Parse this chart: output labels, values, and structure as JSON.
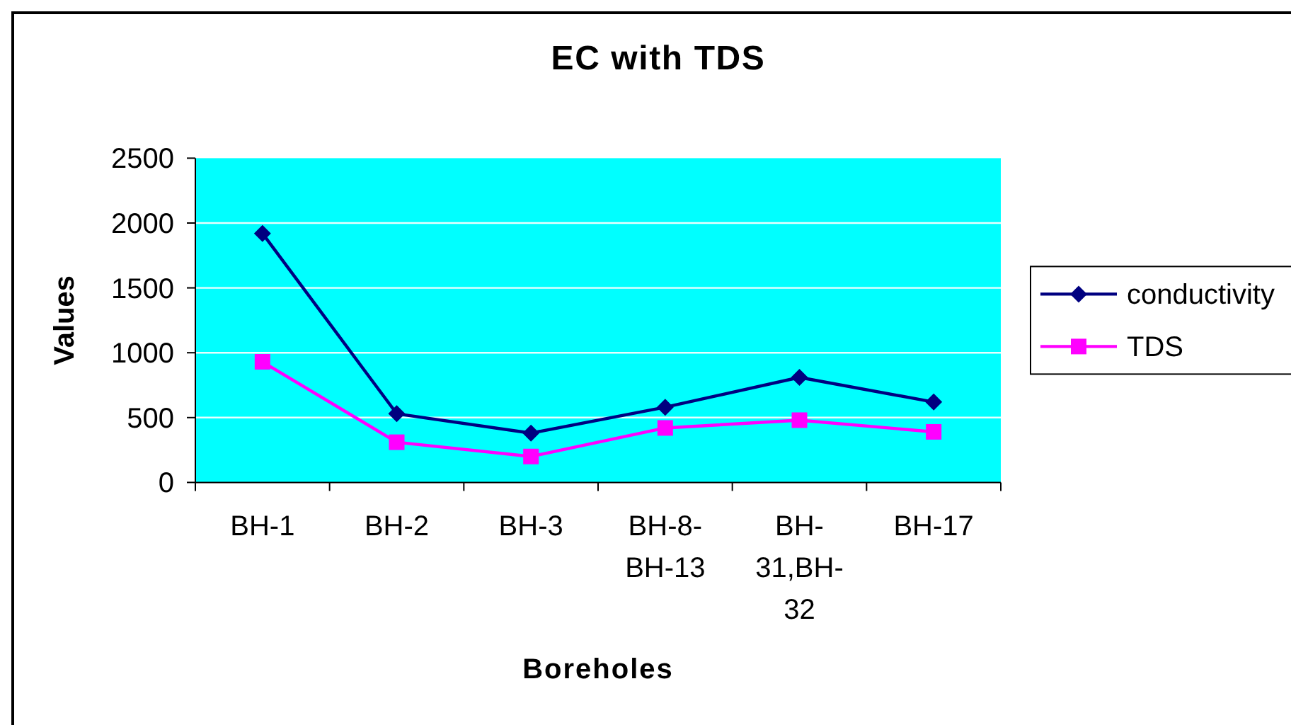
{
  "chart_data": {
    "type": "line",
    "title": "EC with TDS",
    "xlabel": "Boreholes",
    "ylabel": "Values",
    "categories": [
      "BH-1",
      "BH-2",
      "BH-3",
      "BH-8-BH-13",
      "BH-31,BH-32",
      "BH-17"
    ],
    "series": [
      {
        "name": "conductivity",
        "color": "#000080",
        "marker": "diamond",
        "values": [
          1920,
          530,
          380,
          580,
          810,
          620
        ]
      },
      {
        "name": "TDS",
        "color": "#ff00ff",
        "marker": "square",
        "values": [
          930,
          310,
          200,
          420,
          480,
          390
        ]
      }
    ],
    "ylim": [
      0,
      2500
    ],
    "yticks": [
      0,
      500,
      1000,
      1500,
      2000,
      2500
    ],
    "grid": "y",
    "legend": "right"
  }
}
